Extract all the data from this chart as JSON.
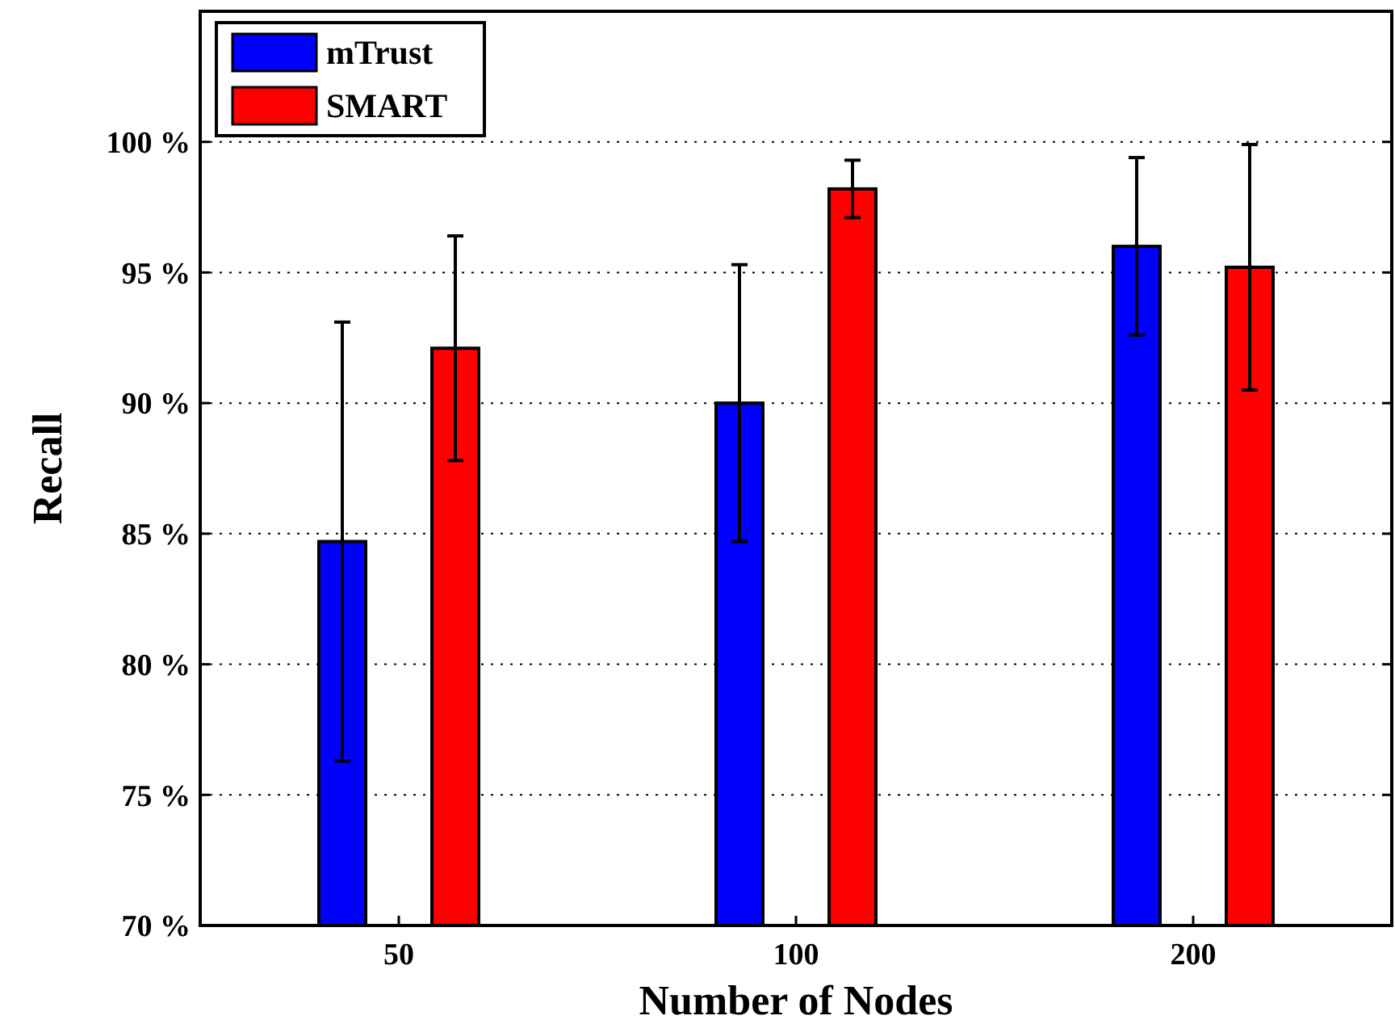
{
  "chart_data": {
    "type": "bar",
    "xlabel": "Number of Nodes",
    "ylabel": "Recall",
    "categories": [
      "50",
      "100",
      "200"
    ],
    "series": [
      {
        "name": "mTrust",
        "color": "#0000ff",
        "values": [
          84.7,
          90.0,
          96.0
        ],
        "errors": [
          8.4,
          5.3,
          3.4
        ]
      },
      {
        "name": "SMART",
        "color": "#ff0000",
        "values": [
          92.1,
          98.2,
          95.2
        ],
        "errors": [
          4.3,
          1.1,
          4.7
        ]
      }
    ],
    "ylim": [
      70,
      105
    ],
    "yticks": [
      {
        "value": 70,
        "label": "70 %"
      },
      {
        "value": 75,
        "label": "75 %"
      },
      {
        "value": 80,
        "label": "80 %"
      },
      {
        "value": 85,
        "label": "85 %"
      },
      {
        "value": 90,
        "label": "90 %"
      },
      {
        "value": 95,
        "label": "95 %"
      },
      {
        "value": 100,
        "label": "100 %"
      }
    ],
    "grid": "y",
    "legend": "top left"
  }
}
